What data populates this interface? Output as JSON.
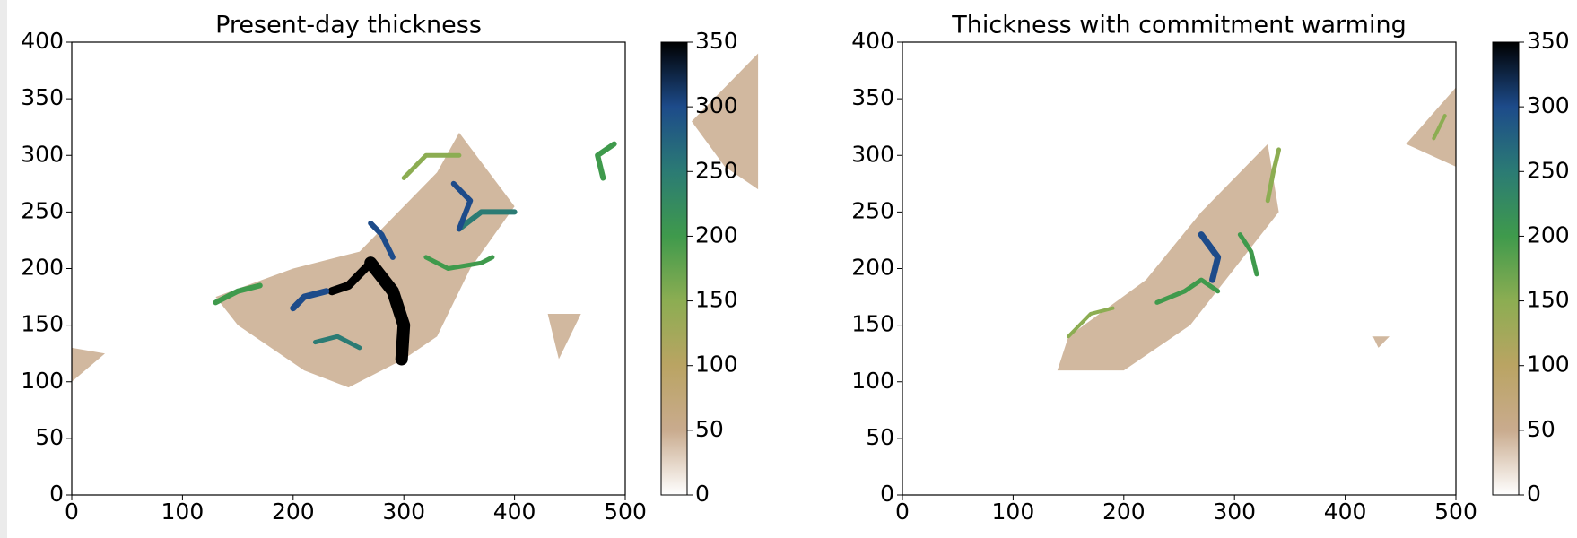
{
  "chart_data": [
    {
      "type": "heatmap",
      "title": "Present-day thickness",
      "xlim": [
        0,
        500
      ],
      "ylim": [
        0,
        400
      ],
      "xticks": [
        0,
        100,
        200,
        300,
        400,
        500
      ],
      "yticks": [
        0,
        50,
        100,
        150,
        200,
        250,
        300,
        350,
        400
      ],
      "clim": [
        0,
        350
      ],
      "cticks": [
        0,
        50,
        100,
        150,
        200,
        250,
        300,
        350
      ],
      "colormap": [
        "#ffffff",
        "#c9ab8e",
        "#baa463",
        "#8cad52",
        "#3f9a4c",
        "#2b7b74",
        "#1d4b8a",
        "#000000"
      ]
    },
    {
      "type": "heatmap",
      "title": "Thickness with commitment warming",
      "xlim": [
        0,
        500
      ],
      "ylim": [
        0,
        400
      ],
      "xticks": [
        0,
        100,
        200,
        300,
        400,
        500
      ],
      "yticks": [
        0,
        50,
        100,
        150,
        200,
        250,
        300,
        350,
        400
      ],
      "clim": [
        0,
        350
      ],
      "cticks": [
        0,
        50,
        100,
        150,
        200,
        250,
        300,
        350
      ],
      "colormap": [
        "#ffffff",
        "#c9ab8e",
        "#baa463",
        "#8cad52",
        "#3f9a4c",
        "#2b7b74",
        "#1d4b8a",
        "#000000"
      ]
    }
  ]
}
